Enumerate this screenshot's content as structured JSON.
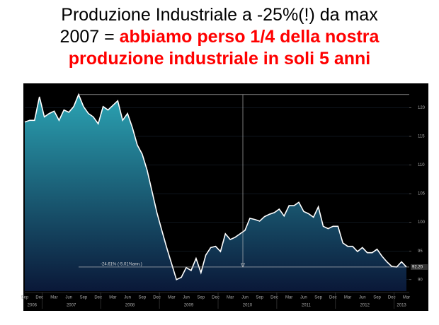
{
  "chart_data": {
    "type": "area",
    "title_lines": [
      [
        {
          "text": "Produzione Industriale a -25%(!) da max",
          "color": "#000000",
          "bold": false
        }
      ],
      [
        {
          "text": "2007 = ",
          "color": "#000000",
          "bold": false
        },
        {
          "text": "abbiamo perso 1/4 della nostra",
          "color": "#ff0000",
          "bold": true
        }
      ],
      [
        {
          "text": "produzione industriale in soli 5 anni",
          "color": "#ff0000",
          "bold": true
        }
      ]
    ],
    "categories": [
      "Sep",
      null,
      null,
      "Dec",
      null,
      null,
      "Mar",
      null,
      null,
      "Jun",
      null,
      null,
      "Sep",
      null,
      null,
      "Dec",
      null,
      null,
      "Mar",
      null,
      null,
      "Jun",
      null,
      null,
      "Sep",
      null,
      null,
      "Dec",
      null,
      null,
      "Mar",
      null,
      null,
      "Jun",
      null,
      null,
      "Sep",
      null,
      null,
      "Dec",
      null,
      null,
      "Mar",
      null,
      null,
      "Jun",
      null,
      null,
      "Sep",
      null,
      null,
      "Dec",
      null,
      null,
      "Mar",
      null,
      null,
      "Jun",
      null,
      null,
      "Sep",
      null,
      null,
      "Dec",
      null,
      null,
      "Mar",
      null,
      null,
      "Jun",
      null,
      null,
      "Sep",
      null,
      null,
      "Dec",
      null,
      null,
      "Mar"
    ],
    "years": [
      "2006",
      "2007",
      "2008",
      "2009",
      "2010",
      "2011",
      "2012",
      "2013"
    ],
    "values": [
      117.5,
      117.8,
      117.8,
      121.9,
      118.4,
      119,
      119.4,
      117.8,
      119.6,
      119.2,
      120.2,
      122.3,
      120.2,
      119,
      118.4,
      117.2,
      120.2,
      119.6,
      120.4,
      121.2,
      117.8,
      119,
      116.5,
      113.5,
      111.9,
      109.1,
      105.4,
      101.7,
      98.6,
      95.6,
      92.8,
      90,
      90.4,
      92.1,
      91.6,
      93.7,
      91.2,
      94.3,
      95.6,
      95.8,
      94.9,
      98,
      97,
      97.4,
      98,
      98.6,
      100.7,
      100.5,
      100.2,
      101,
      101.4,
      101.7,
      102.3,
      101.1,
      102.9,
      102.9,
      103.5,
      101.9,
      101.5,
      100.9,
      102.7,
      99.3,
      98.9,
      99.3,
      99.3,
      96.4,
      95.8,
      95.8,
      94.9,
      95.6,
      94.7,
      94.7,
      95.3,
      94.1,
      93.1,
      92.3,
      92.2,
      93.1,
      92.2
    ],
    "last_value_label": "92.20",
    "annotation": "-24.61% (-5.01%ann.)",
    "ylim": [
      88,
      124
    ],
    "yticks": [
      90,
      95,
      100,
      105,
      110,
      115,
      120
    ],
    "line_color": "#ffffff",
    "fill_top_color": "#2ba3b3",
    "fill_bottom_color": "#0a1838"
  }
}
